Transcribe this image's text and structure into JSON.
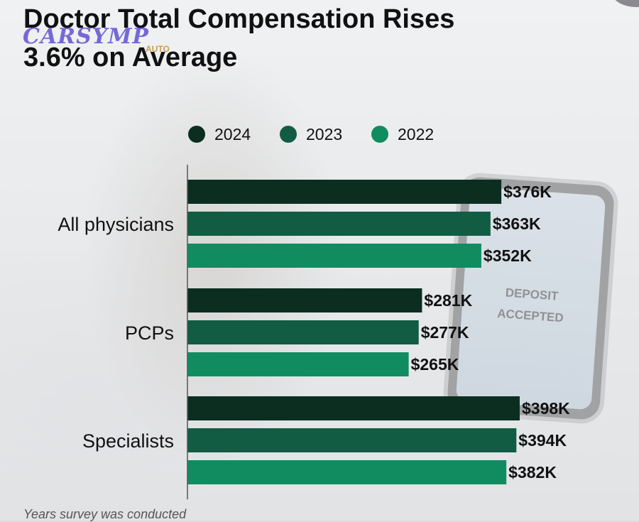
{
  "title": {
    "line1": "Doctor Total Compensation Rises",
    "line2": "3.6% on Average"
  },
  "watermark": {
    "text": "CARSYMP",
    "subtext": "AUTO"
  },
  "background_phone": {
    "line1": "DEPOSIT",
    "line2": "ACCEPTED"
  },
  "footnote": "Years survey was conducted",
  "colors": {
    "series_2024": "#0b2e20",
    "series_2023": "#115c42",
    "series_2022": "#118c60",
    "axis": "#555555"
  },
  "chart_data": {
    "type": "bar",
    "orientation": "horizontal",
    "title": "Doctor Total Compensation Rises 3.6% on Average",
    "categories": [
      "All physicians",
      "PCPs",
      "Specialists"
    ],
    "series": [
      {
        "name": "2024",
        "values": [
          376,
          281,
          398
        ],
        "labels": [
          "$376K",
          "$281K",
          "$398K"
        ]
      },
      {
        "name": "2023",
        "values": [
          363,
          277,
          394
        ],
        "labels": [
          "$363K",
          "$277K",
          "$394K"
        ]
      },
      {
        "name": "2022",
        "values": [
          352,
          265,
          382
        ],
        "labels": [
          "$352K",
          "$265K",
          "$382K"
        ]
      }
    ],
    "legend_position": "top",
    "xlabel": "",
    "ylabel": "",
    "xlim": [
      0,
      398
    ],
    "grid": false
  }
}
